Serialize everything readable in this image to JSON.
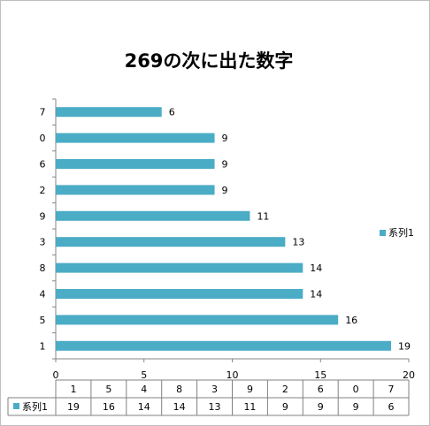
{
  "chart_data": {
    "type": "bar",
    "orientation": "horizontal",
    "title": "269の次に出た数字",
    "categories": [
      "1",
      "5",
      "4",
      "8",
      "3",
      "9",
      "2",
      "6",
      "0",
      "7"
    ],
    "series": [
      {
        "name": "系列1",
        "values": [
          19,
          16,
          14,
          14,
          13,
          11,
          9,
          9,
          9,
          6
        ],
        "color": "#4bacc6"
      }
    ],
    "xlim": [
      0,
      20
    ],
    "x_ticks": [
      0,
      5,
      10,
      15,
      20
    ],
    "grid": false,
    "legend_position": "right",
    "data_labels": true,
    "data_table": true
  }
}
